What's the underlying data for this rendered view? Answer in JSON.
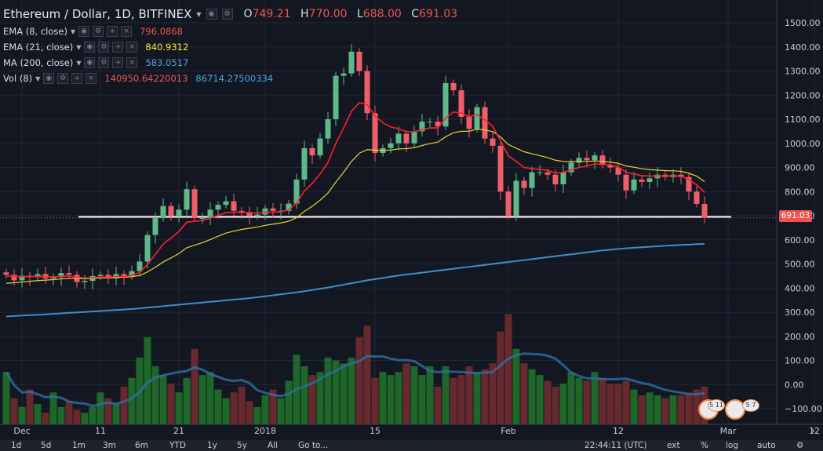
{
  "header": {
    "symbol_title": "Ethereum / Dollar, 1D, BITFINEX",
    "ohlc": {
      "o_label": "O",
      "o": "749.21",
      "h_label": "H",
      "h": "770.00",
      "l_label": "L",
      "l": "688.00",
      "c_label": "C",
      "c": "691.03"
    }
  },
  "indicators": [
    {
      "label": "EMA (8, close)",
      "value": "796.0868",
      "color": "#ef5350"
    },
    {
      "label": "EMA (21, close)",
      "value": "840.9312",
      "color": "#ffeb3b"
    },
    {
      "label": "MA (200, close)",
      "value": "583.0517",
      "color": "#4fa3e0"
    },
    {
      "label": "Vol (8)",
      "value": "140950.64220013",
      "value2": "86714.27500334",
      "color": "#ef5350",
      "color2": "#4fa3e0"
    }
  ],
  "last_price_tag": "691.03",
  "bottom_bar": {
    "ranges": [
      "1d",
      "5d",
      "1m",
      "3m",
      "6m",
      "YTD",
      "1y",
      "5y",
      "All"
    ],
    "goto": "Go to...",
    "time": "22:44:11 (UTC)",
    "ext": "ext",
    "percent": "%",
    "log": "log",
    "auto": "auto"
  },
  "flags": [
    "5 11",
    "5 7"
  ],
  "chart_data": {
    "type": "candlestick",
    "title": "Ethereum / Dollar, 1D, BITFINEX",
    "ylim": [
      -150,
      1550
    ],
    "y_ticks": [
      1500,
      1400,
      1300,
      1200,
      1100,
      1000,
      900,
      800,
      700,
      600,
      500,
      400,
      300,
      200,
      100,
      0,
      -100
    ],
    "y_tick_labels": [
      "1500.00",
      "1400.00",
      "1300.00",
      "1200.00",
      "1100.00",
      "1000.00",
      "900.00",
      "800.00",
      "700.00",
      "600.00",
      "500.00",
      "400.00",
      "300.00",
      "200.00",
      "100.00",
      "0.00",
      "−100.00"
    ],
    "x_ticks": [
      "Dec",
      "11",
      "21",
      "2018",
      "15",
      "Feb",
      "12",
      "Mar",
      "12"
    ],
    "x_tick_days": [
      0,
      10,
      20,
      31,
      45,
      62,
      76,
      90,
      101
    ],
    "horizontal_line": 695,
    "series_names": [
      "EMA (8, close)",
      "EMA (21, close)",
      "MA (200, close)",
      "Vol (8)"
    ],
    "close": [
      455,
      432,
      451,
      445,
      458,
      440,
      445,
      462,
      455,
      425,
      430,
      450,
      455,
      440,
      458,
      450,
      470,
      510,
      620,
      690,
      740,
      700,
      725,
      810,
      690,
      690,
      725,
      745,
      760,
      720,
      715,
      700,
      705,
      730,
      720,
      720,
      750,
      850,
      980,
      950,
      1020,
      1100,
      1280,
      1290,
      1380,
      1300,
      1125,
      960,
      980,
      1000,
      1040,
      1000,
      1050,
      1090,
      1090,
      1070,
      1250,
      1220,
      1110,
      1060,
      1150,
      1020,
      990,
      800,
      700,
      845,
      815,
      880,
      880,
      870,
      830,
      880,
      920,
      940,
      930,
      950,
      910,
      900,
      870,
      805,
      850,
      840,
      855,
      870,
      860,
      870,
      860,
      800,
      749,
      691
    ],
    "ema8": [
      450,
      448,
      448,
      447,
      449,
      447,
      446,
      449,
      450,
      445,
      442,
      443,
      446,
      445,
      448,
      448,
      452,
      465,
      498,
      540,
      582,
      608,
      634,
      673,
      677,
      680,
      690,
      701,
      713,
      714,
      714,
      712,
      711,
      714,
      715,
      716,
      724,
      752,
      803,
      834,
      873,
      920,
      999,
      1064,
      1133,
      1169,
      1160,
      1114,
      1085,
      1068,
      1061,
      1048,
      1048,
      1057,
      1064,
      1064,
      1105,
      1130,
      1126,
      1110,
      1119,
      1097,
      1071,
      1010,
      948,
      925,
      900,
      895,
      892,
      888,
      877,
      880,
      890,
      900,
      906,
      915,
      913,
      911,
      902,
      880,
      873,
      866,
      864,
      865,
      864,
      865,
      864,
      850,
      828,
      797
    ],
    "ema21": [
      420,
      422,
      425,
      428,
      431,
      433,
      435,
      438,
      440,
      440,
      439,
      440,
      442,
      442,
      444,
      445,
      447,
      452,
      467,
      486,
      508,
      525,
      543,
      567,
      578,
      588,
      601,
      615,
      628,
      636,
      643,
      648,
      653,
      660,
      665,
      670,
      677,
      692,
      718,
      739,
      764,
      794,
      839,
      880,
      925,
      959,
      974,
      972,
      971,
      972,
      977,
      978,
      982,
      991,
      999,
      1005,
      1027,
      1044,
      1050,
      1050,
      1059,
      1055,
      1049,
      1026,
      995,
      980,
      965,
      957,
      949,
      941,
      930,
      925,
      924,
      925,
      925,
      927,
      925,
      922,
      917,
      906,
      901,
      895,
      891,
      889,
      887,
      886,
      884,
      876,
      864,
      841
    ],
    "ma200": [
      282,
      284,
      286,
      288,
      289,
      291,
      293,
      295,
      297,
      299,
      301,
      303,
      305,
      307,
      309,
      311,
      313,
      316,
      319,
      322,
      325,
      328,
      331,
      334,
      337,
      340,
      343,
      346,
      349,
      352,
      355,
      358,
      362,
      366,
      370,
      374,
      378,
      382,
      387,
      392,
      397,
      402,
      408,
      414,
      420,
      426,
      432,
      437,
      442,
      447,
      452,
      456,
      460,
      464,
      468,
      472,
      476,
      480,
      484,
      488,
      492,
      496,
      500,
      504,
      508,
      512,
      516,
      520,
      524,
      528,
      532,
      536,
      540,
      544,
      548,
      552,
      556,
      559,
      562,
      565,
      567,
      569,
      571,
      573,
      575,
      577,
      579,
      580,
      582,
      583
    ],
    "volume": [
      180,
      90,
      60,
      120,
      70,
      40,
      110,
      60,
      80,
      50,
      40,
      60,
      110,
      90,
      70,
      130,
      160,
      230,
      300,
      200,
      170,
      140,
      110,
      160,
      260,
      170,
      180,
      120,
      90,
      110,
      130,
      80,
      60,
      100,
      120,
      90,
      150,
      240,
      200,
      170,
      180,
      230,
      220,
      210,
      230,
      300,
      340,
      160,
      180,
      170,
      180,
      210,
      200,
      170,
      200,
      130,
      200,
      160,
      170,
      200,
      180,
      190,
      210,
      320,
      380,
      260,
      210,
      190,
      170,
      150,
      130,
      140,
      180,
      160,
      150,
      180,
      160,
      140,
      140,
      150,
      120,
      100,
      110,
      100,
      90,
      100,
      100,
      110,
      120,
      130
    ]
  }
}
